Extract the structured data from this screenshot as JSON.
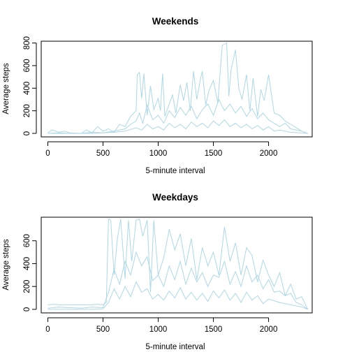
{
  "chart_data": [
    {
      "type": "line",
      "title": "Weekends",
      "xlabel": "5-minute interval",
      "ylabel": "Average steps",
      "xlim": [
        -60,
        2395
      ],
      "ylim": [
        -31,
        816
      ],
      "xticks": [
        0,
        500,
        1000,
        1500,
        2000
      ],
      "yticks": [
        0,
        200,
        400,
        600,
        800
      ],
      "grid": false,
      "line_color": "#add8e6",
      "series": [
        {
          "x": [
            0,
            40,
            100,
            150,
            200,
            300,
            350,
            400,
            450,
            500,
            550,
            600,
            650,
            700,
            750,
            800,
            810,
            830,
            850,
            870,
            900,
            930,
            960,
            1000,
            1020,
            1040,
            1060,
            1100,
            1130,
            1160,
            1200,
            1230,
            1260,
            1290,
            1320,
            1350,
            1380,
            1400,
            1430,
            1460,
            1500,
            1540,
            1580,
            1600,
            1620,
            1640,
            1660,
            1700,
            1730,
            1760,
            1800,
            1830,
            1860,
            1900,
            1930,
            1960,
            2000,
            2050,
            2100,
            2150,
            2200,
            2250,
            2300,
            2355
          ],
          "y": [
            5,
            30,
            10,
            20,
            5,
            0,
            30,
            5,
            60,
            20,
            40,
            10,
            80,
            60,
            150,
            200,
            520,
            540,
            310,
            530,
            160,
            420,
            210,
            310,
            200,
            530,
            150,
            260,
            340,
            180,
            430,
            290,
            450,
            200,
            550,
            300,
            470,
            550,
            250,
            380,
            470,
            270,
            780,
            790,
            800,
            330,
            560,
            740,
            400,
            300,
            520,
            200,
            490,
            150,
            390,
            290,
            520,
            180,
            160,
            110,
            80,
            50,
            20,
            0
          ]
        },
        {
          "x": [
            0,
            100,
            200,
            300,
            400,
            500,
            600,
            700,
            750,
            800,
            830,
            860,
            900,
            950,
            1000,
            1050,
            1100,
            1150,
            1200,
            1250,
            1300,
            1350,
            1400,
            1450,
            1500,
            1550,
            1600,
            1650,
            1700,
            1750,
            1800,
            1850,
            1900,
            1950,
            2000,
            2050,
            2100,
            2150,
            2200,
            2300,
            2355
          ],
          "y": [
            0,
            5,
            0,
            0,
            10,
            5,
            20,
            40,
            80,
            110,
            180,
            90,
            250,
            120,
            160,
            90,
            200,
            140,
            230,
            160,
            240,
            130,
            210,
            260,
            160,
            300,
            200,
            260,
            180,
            240,
            150,
            220,
            130,
            180,
            120,
            90,
            60,
            90,
            40,
            20,
            0
          ]
        },
        {
          "x": [
            0,
            200,
            400,
            600,
            700,
            800,
            850,
            900,
            950,
            1000,
            1050,
            1100,
            1150,
            1200,
            1250,
            1300,
            1350,
            1400,
            1450,
            1500,
            1550,
            1600,
            1650,
            1700,
            1750,
            1800,
            1850,
            1900,
            1950,
            2000,
            2050,
            2100,
            2200,
            2355
          ],
          "y": [
            0,
            0,
            0,
            10,
            20,
            50,
            30,
            80,
            40,
            60,
            30,
            90,
            50,
            80,
            40,
            100,
            60,
            90,
            50,
            110,
            70,
            120,
            60,
            90,
            50,
            80,
            40,
            70,
            30,
            60,
            20,
            30,
            10,
            0
          ]
        }
      ]
    },
    {
      "type": "line",
      "title": "Weekdays",
      "xlabel": "5-minute interval",
      "ylabel": "Average steps",
      "xlim": [
        -60,
        2395
      ],
      "ylim": [
        -31,
        806
      ],
      "xticks": [
        0,
        500,
        1000,
        1500,
        2000
      ],
      "yticks": [
        0,
        200,
        400,
        600
      ],
      "grid": false,
      "line_color": "#add8e6",
      "series": [
        {
          "x": [
            0,
            50,
            100,
            200,
            300,
            400,
            450,
            500,
            530,
            550,
            570,
            600,
            630,
            660,
            700,
            730,
            760,
            800,
            830,
            860,
            900,
            930,
            960,
            1000,
            1050,
            1100,
            1150,
            1200,
            1250,
            1300,
            1350,
            1400,
            1450,
            1500,
            1550,
            1600,
            1650,
            1700,
            1750,
            1800,
            1850,
            1900,
            1950,
            2000,
            2050,
            2100,
            2150,
            2200,
            2250,
            2300,
            2355
          ],
          "y": [
            40,
            45,
            40,
            40,
            40,
            40,
            45,
            40,
            60,
            790,
            780,
            300,
            620,
            790,
            270,
            780,
            420,
            780,
            790,
            640,
            780,
            150,
            780,
            300,
            450,
            700,
            520,
            660,
            380,
            620,
            260,
            540,
            380,
            500,
            300,
            720,
            420,
            580,
            300,
            540,
            470,
            240,
            430,
            300,
            200,
            320,
            120,
            220,
            90,
            110,
            0
          ]
        },
        {
          "x": [
            0,
            100,
            200,
            300,
            400,
            500,
            550,
            600,
            650,
            700,
            750,
            800,
            850,
            900,
            950,
            1000,
            1050,
            1100,
            1150,
            1200,
            1250,
            1300,
            1350,
            1400,
            1450,
            1500,
            1550,
            1600,
            1650,
            1700,
            1750,
            1800,
            1850,
            1900,
            1950,
            2000,
            2050,
            2100,
            2150,
            2200,
            2250,
            2300,
            2355
          ],
          "y": [
            10,
            20,
            15,
            10,
            20,
            15,
            150,
            350,
            220,
            420,
            300,
            500,
            380,
            460,
            250,
            300,
            200,
            380,
            260,
            420,
            220,
            360,
            240,
            320,
            200,
            300,
            280,
            420,
            220,
            330,
            200,
            380,
            240,
            300,
            180,
            260,
            150,
            160,
            120,
            140,
            60,
            40,
            0
          ]
        },
        {
          "x": [
            0,
            200,
            400,
            500,
            550,
            600,
            650,
            700,
            750,
            800,
            850,
            900,
            950,
            1000,
            1050,
            1100,
            1150,
            1200,
            1250,
            1300,
            1350,
            1400,
            1450,
            1500,
            1550,
            1600,
            1650,
            1700,
            1750,
            1800,
            1850,
            1900,
            1950,
            2000,
            2100,
            2200,
            2300,
            2355
          ],
          "y": [
            0,
            0,
            0,
            5,
            60,
            180,
            90,
            200,
            110,
            240,
            150,
            180,
            90,
            130,
            80,
            160,
            100,
            190,
            90,
            150,
            80,
            140,
            70,
            160,
            100,
            170,
            80,
            140,
            60,
            150,
            80,
            120,
            50,
            90,
            60,
            40,
            20,
            0
          ]
        }
      ]
    }
  ]
}
